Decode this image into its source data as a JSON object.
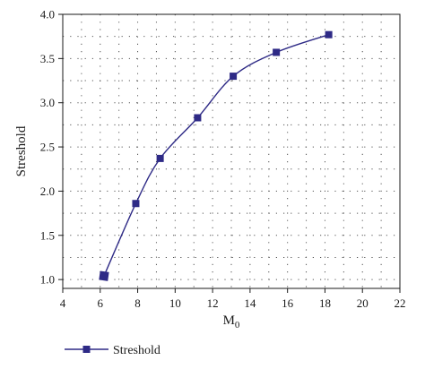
{
  "chart_data": {
    "type": "line",
    "title": "",
    "xlabel": "M",
    "xlabel_sub": "0",
    "ylabel": "Streshold",
    "xlim": [
      4,
      22
    ],
    "ylim": [
      0.9,
      4.0
    ],
    "xticks": [
      4,
      6,
      8,
      10,
      12,
      14,
      16,
      18,
      20,
      22
    ],
    "xtick_labels": [
      "4",
      "6",
      "8",
      "10",
      "12",
      "14",
      "16",
      "18",
      "20",
      "22"
    ],
    "yticks": [
      1.0,
      1.5,
      2.0,
      2.5,
      3.0,
      3.5,
      4.0
    ],
    "ytick_labels": [
      "1.0",
      "1.5",
      "2.0",
      "2.5",
      "3.0",
      "3.5",
      "4.0"
    ],
    "grid": "dotted",
    "legend_position": "bottom-left",
    "series": [
      {
        "name": "Streshold",
        "color": "#2e2a86",
        "marker": "square",
        "x": [
          6.2,
          7.9,
          9.2,
          11.2,
          13.1,
          15.4,
          18.2
        ],
        "y": [
          1.04,
          1.86,
          2.37,
          2.83,
          3.3,
          3.57,
          3.77
        ]
      }
    ]
  }
}
